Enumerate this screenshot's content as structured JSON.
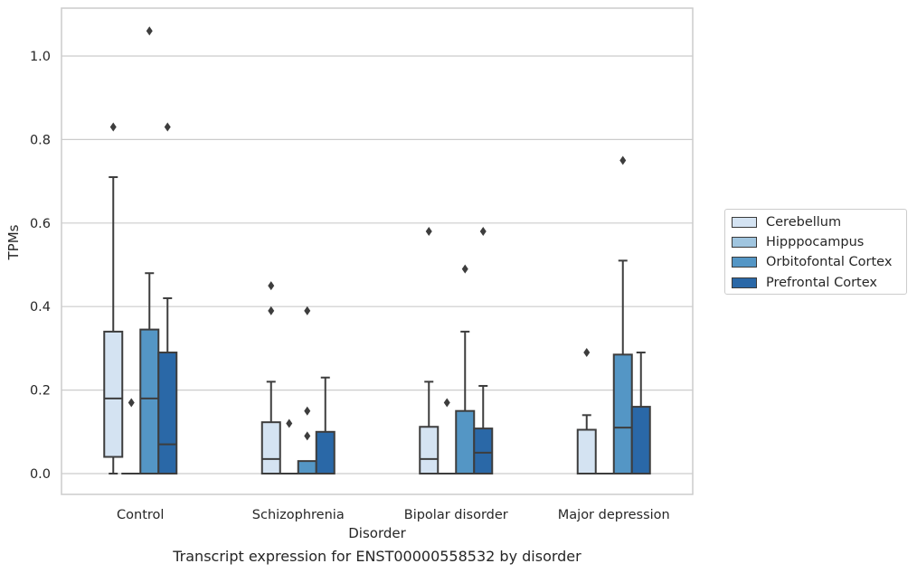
{
  "chart_data": {
    "type": "box",
    "title": "",
    "xlabel": "Disorder",
    "ylabel": "TPMs",
    "categories": [
      "Control",
      "Schizophrenia",
      "Bipolar disorder",
      "Major depression"
    ],
    "ylim": [
      -0.05,
      1.12
    ],
    "yticks": [
      "0.0",
      "0.2",
      "0.4",
      "0.6",
      "0.8",
      "1.0"
    ],
    "grid": true,
    "legend_position": "right",
    "series": [
      {
        "name": "Cerebellum",
        "color": "#d4e3f2",
        "boxes": [
          {
            "q1": 0.04,
            "median": 0.18,
            "q3": 0.34,
            "whisker_low": 0.0,
            "whisker_high": 0.71,
            "outliers": [
              0.83
            ]
          },
          {
            "q1": 0.0,
            "median": 0.035,
            "q3": 0.123,
            "whisker_low": 0.0,
            "whisker_high": 0.22,
            "outliers": [
              0.39,
              0.45
            ]
          },
          {
            "q1": 0.0,
            "median": 0.035,
            "q3": 0.112,
            "whisker_low": 0.0,
            "whisker_high": 0.22,
            "outliers": [
              0.58
            ]
          },
          {
            "q1": 0.0,
            "median": 0.0,
            "q3": 0.105,
            "whisker_low": 0.0,
            "whisker_high": 0.14,
            "outliers": [
              0.29
            ]
          }
        ]
      },
      {
        "name": "Hipppocampus",
        "color": "#a0c5df",
        "boxes": [
          {
            "q1": 0.0,
            "median": 0.0,
            "q3": 0.0,
            "whisker_low": 0.0,
            "whisker_high": 0.0,
            "outliers": [
              0.17
            ]
          },
          {
            "q1": 0.0,
            "median": 0.0,
            "q3": 0.0,
            "whisker_low": 0.0,
            "whisker_high": 0.0,
            "outliers": [
              0.12
            ]
          },
          {
            "q1": 0.0,
            "median": 0.0,
            "q3": 0.0,
            "whisker_low": 0.0,
            "whisker_high": 0.0,
            "outliers": [
              0.17
            ]
          },
          {
            "q1": 0.0,
            "median": 0.0,
            "q3": 0.0,
            "whisker_low": 0.0,
            "whisker_high": 0.0,
            "outliers": []
          }
        ]
      },
      {
        "name": "Orbitofontal Cortex",
        "color": "#5496c5",
        "boxes": [
          {
            "q1": 0.0,
            "median": 0.18,
            "q3": 0.345,
            "whisker_low": 0.0,
            "whisker_high": 0.48,
            "outliers": [
              1.06
            ]
          },
          {
            "q1": 0.0,
            "median": 0.0,
            "q3": 0.03,
            "whisker_low": 0.0,
            "whisker_high": 0.03,
            "outliers": [
              0.09,
              0.15,
              0.39
            ]
          },
          {
            "q1": 0.0,
            "median": 0.0,
            "q3": 0.15,
            "whisker_low": 0.0,
            "whisker_high": 0.34,
            "outliers": [
              0.49
            ]
          },
          {
            "q1": 0.0,
            "median": 0.11,
            "q3": 0.285,
            "whisker_low": 0.0,
            "whisker_high": 0.51,
            "outliers": [
              0.75
            ]
          }
        ]
      },
      {
        "name": "Prefrontal Cortex",
        "color": "#2a68a7",
        "boxes": [
          {
            "q1": 0.0,
            "median": 0.07,
            "q3": 0.29,
            "whisker_low": 0.0,
            "whisker_high": 0.42,
            "outliers": [
              0.83
            ]
          },
          {
            "q1": 0.0,
            "median": 0.0,
            "q3": 0.1,
            "whisker_low": 0.0,
            "whisker_high": 0.23,
            "outliers": []
          },
          {
            "q1": 0.0,
            "median": 0.05,
            "q3": 0.108,
            "whisker_low": 0.0,
            "whisker_high": 0.21,
            "outliers": [
              0.58
            ]
          },
          {
            "q1": 0.0,
            "median": 0.0,
            "q3": 0.16,
            "whisker_low": 0.0,
            "whisker_high": 0.29,
            "outliers": []
          }
        ]
      }
    ]
  },
  "caption": "Transcript expression for ENST00000558532 by disorder"
}
